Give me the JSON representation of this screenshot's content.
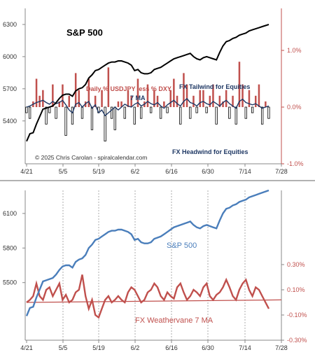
{
  "chart_data": [
    {
      "type": "line",
      "title": "",
      "x_ticks": [
        "4/21",
        "5/5",
        "5/19",
        "6/2",
        "6/16",
        "6/30",
        "7/14",
        "7/28"
      ],
      "y_left_ticks": [
        "6300",
        "6000",
        "5700",
        "5400"
      ],
      "y_right_ticks": [
        "1.0%",
        "0.0%",
        "-1.0%"
      ],
      "ylim_left": [
        5000,
        6450
      ],
      "ylim_right": [
        -1.0,
        1.0
      ],
      "legend_position": "none",
      "grid": false,
      "annotations": {
        "sp_label": "S&P 500",
        "bars_label": "Daily % USDJPY less % DXY",
        "ma_label": "7 MA",
        "tailwind": "FX Tailwind for Equities",
        "headwind": "FX Headwind for Equities",
        "copyright": "© 2025 Chris Carolan - spiralcalendar.com"
      },
      "colors": {
        "sp": "#000000",
        "bars_up": "#c0504d",
        "bars_down": "#ffffff",
        "ma": "#1f3864"
      },
      "series": [
        {
          "name": "S&P 500",
          "axis": "left",
          "values": [
            5210,
            5280,
            5290,
            5370,
            5440,
            5510,
            5520,
            5530,
            5540,
            5570,
            5610,
            5640,
            5650,
            5650,
            5630,
            5680,
            5700,
            5710,
            5740,
            5800,
            5830,
            5870,
            5880,
            5900,
            5920,
            5940,
            5950,
            5950,
            5960,
            5960,
            5950,
            5940,
            5920,
            5870,
            5880,
            5850,
            5840,
            5840,
            5850,
            5880,
            5890,
            5900,
            5920,
            5940,
            5960,
            5980,
            5990,
            6000,
            6010,
            6020,
            6030,
            6000,
            5980,
            5970,
            5990,
            6000,
            5990,
            5980,
            5970,
            6040,
            6100,
            6140,
            6150,
            6170,
            6180,
            6200,
            6210,
            6220,
            6240,
            6250,
            6260,
            6270,
            6280,
            6290,
            6300
          ]
        },
        {
          "name": "Daily % USDJPY less % DXY",
          "axis": "right",
          "values": [
            -0.1,
            -0.2,
            0.1,
            0.5,
            0.2,
            0.3,
            -0.3,
            -0.1,
            0.4,
            -0.2,
            0.1,
            0.4,
            -0.5,
            0.2,
            -0.3,
            0.6,
            0.3,
            -0.2,
            0.1,
            0.5,
            -0.4,
            0.2,
            -0.1,
            0.3,
            -0.6,
            0.7,
            -0.2,
            -0.4,
            0.1,
            0.1,
            -0.2,
            0.3,
            0.2,
            -0.3,
            0.5,
            -0.2,
            0.1,
            0.4,
            -0.1,
            0.3,
            0.2,
            -0.2,
            0.1,
            -0.1,
            0.3,
            0.5,
            0.2,
            -0.3,
            0.6,
            0.4,
            -0.2,
            0.2,
            -0.1,
            0.3,
            0.3,
            -0.1,
            0.2,
            0.4,
            -0.3,
            0.2,
            0.1,
            0.3,
            -0.2,
            0.2,
            -0.3,
            0.8,
            0.4,
            -0.2,
            0.3,
            -0.1,
            0.2,
            0.4,
            -0.3,
            0.1,
            -0.2
          ]
        },
        {
          "name": "7 MA",
          "axis": "right",
          "values": [
            0.0,
            0.02,
            0.05,
            0.08,
            0.1,
            0.12,
            0.08,
            0.05,
            0.1,
            0.06,
            0.08,
            0.12,
            0.04,
            -0.05,
            -0.1,
            0.05,
            0.08,
            0.0,
            0.06,
            0.1,
            -0.02,
            0.04,
            -0.1,
            -0.05,
            -0.15,
            -0.1,
            -0.05,
            0.0,
            -0.05,
            0.0,
            0.05,
            0.02,
            0.0,
            0.05,
            0.08,
            0.02,
            0.05,
            0.1,
            0.06,
            0.04,
            0.08,
            0.02,
            -0.02,
            0.04,
            0.08,
            0.12,
            0.06,
            0.02,
            0.1,
            0.15,
            0.08,
            0.06,
            0.02,
            0.08,
            0.1,
            0.06,
            0.04,
            0.1,
            0.06,
            0.02,
            0.08,
            0.12,
            0.06,
            0.02,
            -0.02,
            0.1,
            0.14,
            0.08,
            0.06,
            0.04,
            0.06,
            0.02,
            -0.02,
            0.0,
            0.02
          ]
        }
      ]
    },
    {
      "type": "line",
      "title": "",
      "x_ticks": [
        "4/21",
        "5/5",
        "5/19",
        "6/2",
        "6/16",
        "6/30",
        "7/14",
        "7/28"
      ],
      "y_left_ticks": [
        "6100",
        "5800",
        "5500"
      ],
      "y_right_ticks": [
        "0.30%",
        "0.10%",
        "-0.10%",
        "-0.30%"
      ],
      "ylim_left": [
        5000,
        6300
      ],
      "ylim_right": [
        -0.3,
        0.4
      ],
      "grid": false,
      "legend_position": "none",
      "annotations": {
        "sp_label": "S&P 500",
        "fx_label": "FX Weathervane 7 MA"
      },
      "colors": {
        "sp": "#4a7ebb",
        "fx": "#c0504d",
        "trend": "#c0504d",
        "gridline": "#888888"
      },
      "series": [
        {
          "name": "S&P 500",
          "axis": "left",
          "values": [
            5210,
            5280,
            5290,
            5370,
            5440,
            5510,
            5520,
            5530,
            5540,
            5570,
            5610,
            5640,
            5650,
            5650,
            5630,
            5680,
            5700,
            5710,
            5740,
            5800,
            5830,
            5870,
            5880,
            5900,
            5920,
            5940,
            5950,
            5950,
            5960,
            5960,
            5950,
            5940,
            5920,
            5870,
            5880,
            5850,
            5840,
            5840,
            5850,
            5880,
            5890,
            5900,
            5920,
            5940,
            5960,
            5980,
            5990,
            6000,
            6010,
            6020,
            6030,
            6000,
            5980,
            5970,
            5990,
            6000,
            5990,
            5980,
            5970,
            6040,
            6100,
            6140,
            6150,
            6170,
            6180,
            6200,
            6210,
            6220,
            6240,
            6250,
            6260,
            6270,
            6280,
            6290,
            6300
          ]
        },
        {
          "name": "FX Weathervane 7 MA",
          "axis": "right",
          "values": [
            0.0,
            0.02,
            0.05,
            0.15,
            0.05,
            0.02,
            0.1,
            0.12,
            0.05,
            0.1,
            0.15,
            0.02,
            0.06,
            0.0,
            0.02,
            0.08,
            0.1,
            0.22,
            0.05,
            -0.05,
            0.02,
            -0.1,
            -0.12,
            -0.05,
            0.02,
            0.05,
            0.0,
            0.02,
            0.05,
            0.02,
            0.0,
            0.08,
            0.12,
            0.1,
            0.05,
            0.0,
            0.02,
            0.08,
            0.1,
            0.15,
            0.12,
            0.05,
            0.02,
            0.08,
            0.05,
            0.03,
            0.12,
            0.15,
            0.08,
            0.02,
            0.05,
            0.1,
            0.08,
            0.05,
            0.12,
            0.15,
            0.05,
            0.02,
            0.06,
            0.08,
            0.12,
            0.18,
            0.12,
            0.05,
            0.02,
            0.1,
            0.15,
            0.18,
            0.1,
            0.05,
            0.12,
            0.1,
            0.05,
            0.0,
            -0.05
          ]
        }
      ]
    }
  ]
}
